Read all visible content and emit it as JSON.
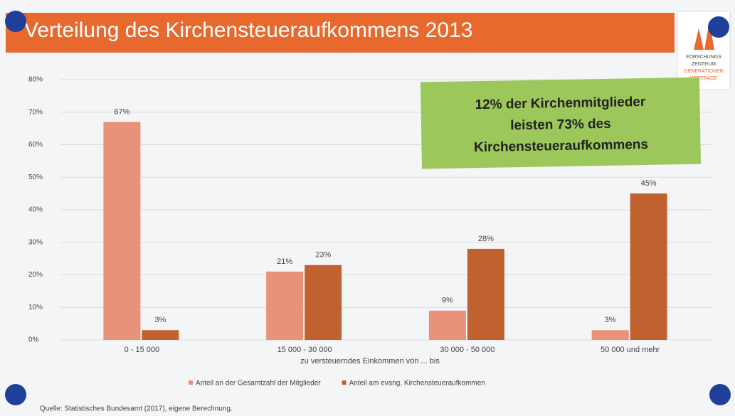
{
  "chart_data": {
    "type": "bar",
    "title": "Verteilung des Kirchensteueraufkommens 2013",
    "xlabel": "zu versteuerndes  Einkommen von ... bis",
    "annotation": [
      "12% der Kirchenmitglieder",
      "leisten 73% des",
      "Kirchensteueraufkommens"
    ],
    "source": "Quelle: Statistisches Bundesamt (2017), eigene Berechnung.",
    "logo": [
      "FORSCHUNGS",
      "ZENTRUM",
      "GENERATIONEN",
      "VERTRÄGE"
    ],
    "categories": [
      "0 - 15 000",
      "15 000 - 30 000",
      "30 000 - 50 000",
      "50 000 und mehr"
    ],
    "series": [
      {
        "name": "Anteil an der Gesamtzahl der Mitglieder",
        "color": "#e8927c",
        "values": [
          67,
          21,
          9,
          3
        ],
        "value_labels": [
          "67%",
          "21%",
          "9%",
          "3%"
        ]
      },
      {
        "name": "Anteil am evang. Kirchensteueraufkommen",
        "color": "#c0622f",
        "values": [
          3,
          23,
          28,
          45
        ],
        "value_labels": [
          "3%",
          "23%",
          "28%",
          "45%"
        ]
      }
    ],
    "ylim": [
      0,
      80
    ],
    "yticks": [
      {
        "value": 0,
        "label": "0%"
      },
      {
        "value": 10,
        "label": "10%"
      },
      {
        "value": 20,
        "label": "20%"
      },
      {
        "value": 30,
        "label": "30%"
      },
      {
        "value": 40,
        "label": "40%"
      },
      {
        "value": 50,
        "label": "50%"
      },
      {
        "value": 60,
        "label": "60%"
      },
      {
        "value": 70,
        "label": "70%"
      },
      {
        "value": 80,
        "label": "80%"
      }
    ],
    "grid": true,
    "legend": "bottom"
  }
}
